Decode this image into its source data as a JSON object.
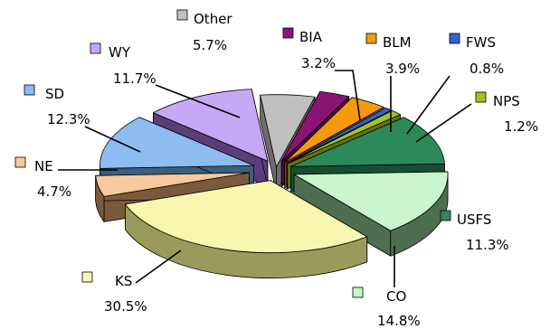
{
  "chart_data": {
    "type": "pie",
    "style": "3d-exploded",
    "title": "",
    "slices": [
      {
        "label": "Other",
        "value": 5.7,
        "pct_text": "5.7%",
        "color": "#c0c0c0",
        "side": "#6e6e6e"
      },
      {
        "label": "BIA",
        "value": 3.2,
        "pct_text": "3.2%",
        "color": "#8a1474",
        "side": "#4a0a3e"
      },
      {
        "label": "BLM",
        "value": 3.9,
        "pct_text": "3.9%",
        "color": "#f59a0c",
        "side": "#8d5806"
      },
      {
        "label": "FWS",
        "value": 0.8,
        "pct_text": "0.8%",
        "color": "#2f62d8",
        "side": "#1a3a80"
      },
      {
        "label": "NPS",
        "value": 1.2,
        "pct_text": "1.2%",
        "color": "#a2c41e",
        "side": "#5e7410"
      },
      {
        "label": "USFS",
        "value": 11.3,
        "pct_text": "11.3%",
        "color": "#2c8a5a",
        "side": "#174e32"
      },
      {
        "label": "CO",
        "value": 14.8,
        "pct_text": "14.8%",
        "color": "#c9f5cc",
        "side": "#4e6e50"
      },
      {
        "label": "KS",
        "value": 30.5,
        "pct_text": "30.5%",
        "color": "#f7f7b0",
        "side": "#9a9a5c"
      },
      {
        "label": "NE",
        "value": 4.7,
        "pct_text": "4.7%",
        "color": "#f7c99c",
        "side": "#7a5a3a"
      },
      {
        "label": "SD",
        "value": 12.3,
        "pct_text": "12.3%",
        "color": "#8cbcf0",
        "side": "#3e5e80"
      },
      {
        "label": "WY",
        "value": 11.7,
        "pct_text": "11.7%",
        "color": "#c8a8f4",
        "side": "#5a3e7a"
      }
    ]
  }
}
